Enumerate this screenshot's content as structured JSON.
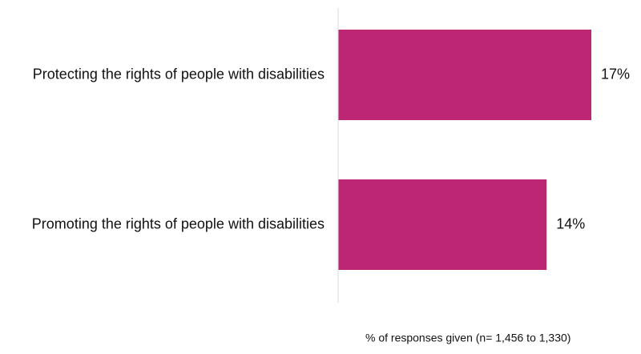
{
  "chart_data": {
    "type": "hbar",
    "categories": [
      "Protecting the rights of people with disabilities",
      "Promoting the rights of people with disabilities"
    ],
    "values": [
      17,
      14
    ],
    "value_labels": [
      "17%",
      "14%"
    ],
    "color": "#bc2672",
    "xlim": [
      0,
      17
    ],
    "x_label": "% of responses given (n= 1,456 to 1,330)"
  }
}
